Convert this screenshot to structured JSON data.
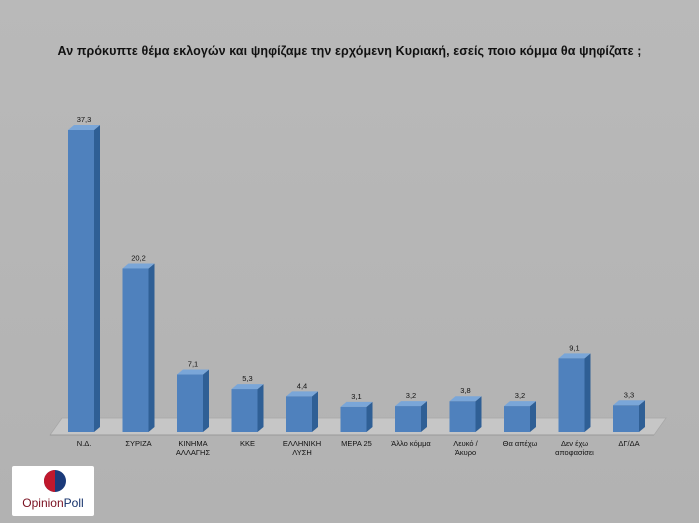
{
  "chart_data": {
    "type": "bar",
    "title": "Αν πρόκυπτε θέμα εκλογών και ψηφίζαμε την ερχόμενη Κυριακή, εσείς ποιο κόμμα θα ψηφίζατε ;",
    "categories": [
      [
        "Ν.Δ."
      ],
      [
        "ΣΥΡΙΖΑ"
      ],
      [
        "ΚΙΝΗΜΑ",
        "ΑΛΛΑΓΗΣ"
      ],
      [
        "ΚΚΕ"
      ],
      [
        "ΕΛΛΗΝΙΚΗ",
        "ΛΥΣΗ"
      ],
      [
        "ΜΕΡΑ 25"
      ],
      [
        "Άλλο κόμμα"
      ],
      [
        "Λευκό /",
        "Άκυρο"
      ],
      [
        "Θα απέχω"
      ],
      [
        "Δεν έχω",
        "αποφασίσει"
      ],
      [
        "ΔΓ/ΔΑ"
      ]
    ],
    "values": [
      37.3,
      20.2,
      7.1,
      5.3,
      4.4,
      3.1,
      3.2,
      3.8,
      3.2,
      9.1,
      3.3
    ],
    "value_labels": [
      "37,3",
      "20,2",
      "7,1",
      "5,3",
      "4,4",
      "3,1",
      "3,2",
      "3,8",
      "3,2",
      "9,1",
      "3,3"
    ],
    "ylim": [
      0,
      40
    ],
    "grid": false,
    "legend": "none",
    "style": "3d-column",
    "colors": {
      "bar_front": "#4f81bd",
      "bar_side": "#2f5f95",
      "bar_top": "#7aa6d8",
      "floor": "#c6c6c6"
    }
  },
  "logo": {
    "text_part1": "Opinion",
    "text_part2": "Poll",
    "mark_colors": [
      "#c0182c",
      "#1b3a7a"
    ]
  }
}
